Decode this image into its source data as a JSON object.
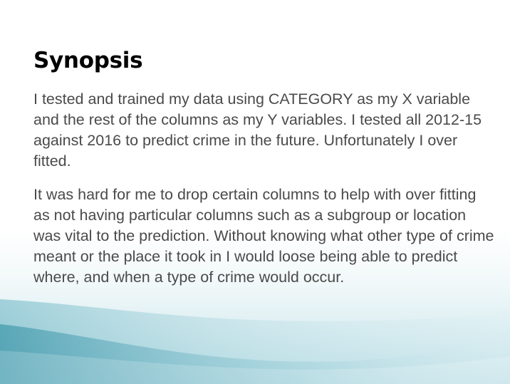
{
  "slide": {
    "title": "Synopsis",
    "paragraphs": [
      "I tested and trained my data using CATEGORY as my X variable and the rest of the columns as my Y variables. I tested all 2012-15 against 2016 to predict crime in the future. Unfortunately I over fitted.",
      "It was hard for me to drop certain columns to help with over fitting as not having particular columns such as a subgroup or location was vital to the prediction. Without knowing what other type of crime meant or the place it took in I would loose being able to predict where, and when a type of crime would occur."
    ]
  },
  "colors": {
    "title": "#000000",
    "body_text": "#4a4a4a",
    "wave_light": "#dff0f3",
    "wave_mid": "#a9d6df",
    "wave_dark": "#5aaebf"
  }
}
